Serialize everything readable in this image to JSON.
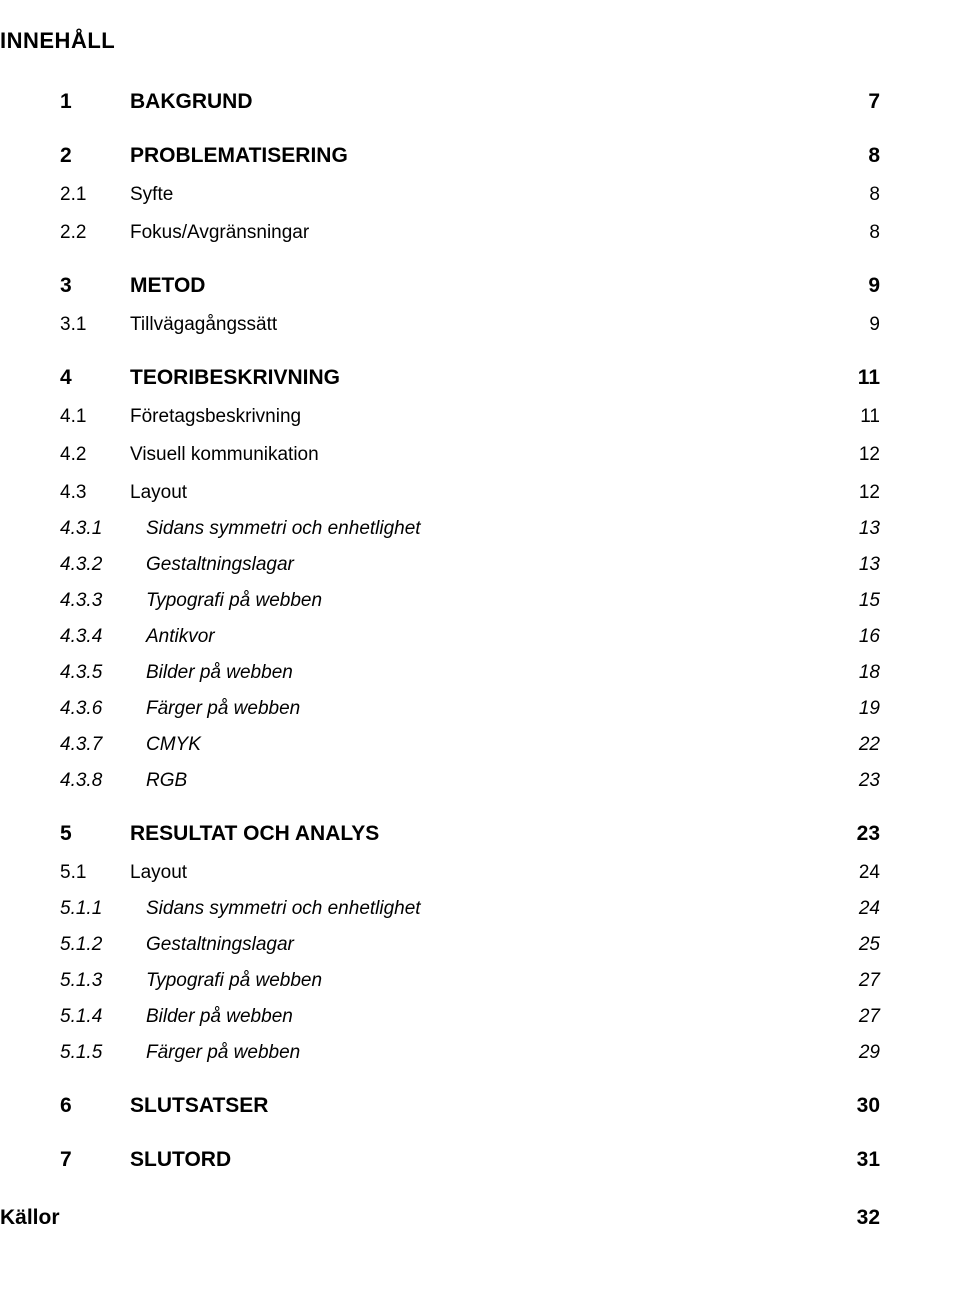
{
  "title": "INNEHÅLL",
  "entries": [
    {
      "level": 1,
      "num": "1",
      "label": "BAKGRUND",
      "page": "7"
    },
    {
      "level": 1,
      "num": "2",
      "label": "PROBLEMATISERING",
      "page": "8"
    },
    {
      "level": 2,
      "num": "2.1",
      "label": "Syfte",
      "page": "8"
    },
    {
      "level": 2,
      "num": "2.2",
      "label": "Fokus/Avgränsningar",
      "page": "8"
    },
    {
      "level": 1,
      "num": "3",
      "label": "METOD",
      "page": "9"
    },
    {
      "level": 2,
      "num": "3.1",
      "label": "Tillvägagångssätt",
      "page": "9"
    },
    {
      "level": 1,
      "num": "4",
      "label": "TEORIBESKRIVNING",
      "page": "11"
    },
    {
      "level": 2,
      "num": "4.1",
      "label": "Företagsbeskrivning",
      "page": "11"
    },
    {
      "level": 2,
      "num": "4.2",
      "label": "Visuell kommunikation",
      "page": "12"
    },
    {
      "level": 2,
      "num": "4.3",
      "label": "Layout",
      "page": "12"
    },
    {
      "level": 3,
      "num": "4.3.1",
      "label": "Sidans symmetri och enhetlighet",
      "page": "13"
    },
    {
      "level": 3,
      "num": "4.3.2",
      "label": "Gestaltningslagar",
      "page": "13"
    },
    {
      "level": 3,
      "num": "4.3.3",
      "label": "Typografi på webben",
      "page": "15"
    },
    {
      "level": 3,
      "num": "4.3.4",
      "label": "Antikvor",
      "page": "16"
    },
    {
      "level": 3,
      "num": "4.3.5",
      "label": "Bilder på webben",
      "page": "18"
    },
    {
      "level": 3,
      "num": "4.3.6",
      "label": "Färger på webben",
      "page": "19"
    },
    {
      "level": 3,
      "num": "4.3.7",
      "label": "CMYK",
      "page": "22"
    },
    {
      "level": 3,
      "num": "4.3.8",
      "label": "RGB",
      "page": "23"
    },
    {
      "level": 1,
      "num": "5",
      "label": "RESULTAT OCH ANALYS",
      "page": "23"
    },
    {
      "level": 2,
      "num": "5.1",
      "label": "Layout",
      "page": "24"
    },
    {
      "level": 3,
      "num": "5.1.1",
      "label": "Sidans symmetri och enhetlighet",
      "page": "24"
    },
    {
      "level": 3,
      "num": "5.1.2",
      "label": "Gestaltningslagar",
      "page": "25"
    },
    {
      "level": 3,
      "num": "5.1.3",
      "label": "Typografi på webben",
      "page": "27"
    },
    {
      "level": 3,
      "num": "5.1.4",
      "label": "Bilder på webben",
      "page": "27"
    },
    {
      "level": 3,
      "num": "5.1.5",
      "label": "Färger på webben",
      "page": "29"
    },
    {
      "level": 1,
      "num": "6",
      "label": "SLUTSATSER",
      "page": "30"
    },
    {
      "level": 1,
      "num": "7",
      "label": "SLUTORD",
      "page": "31"
    }
  ],
  "final": {
    "label": "Källor",
    "page": "32"
  }
}
